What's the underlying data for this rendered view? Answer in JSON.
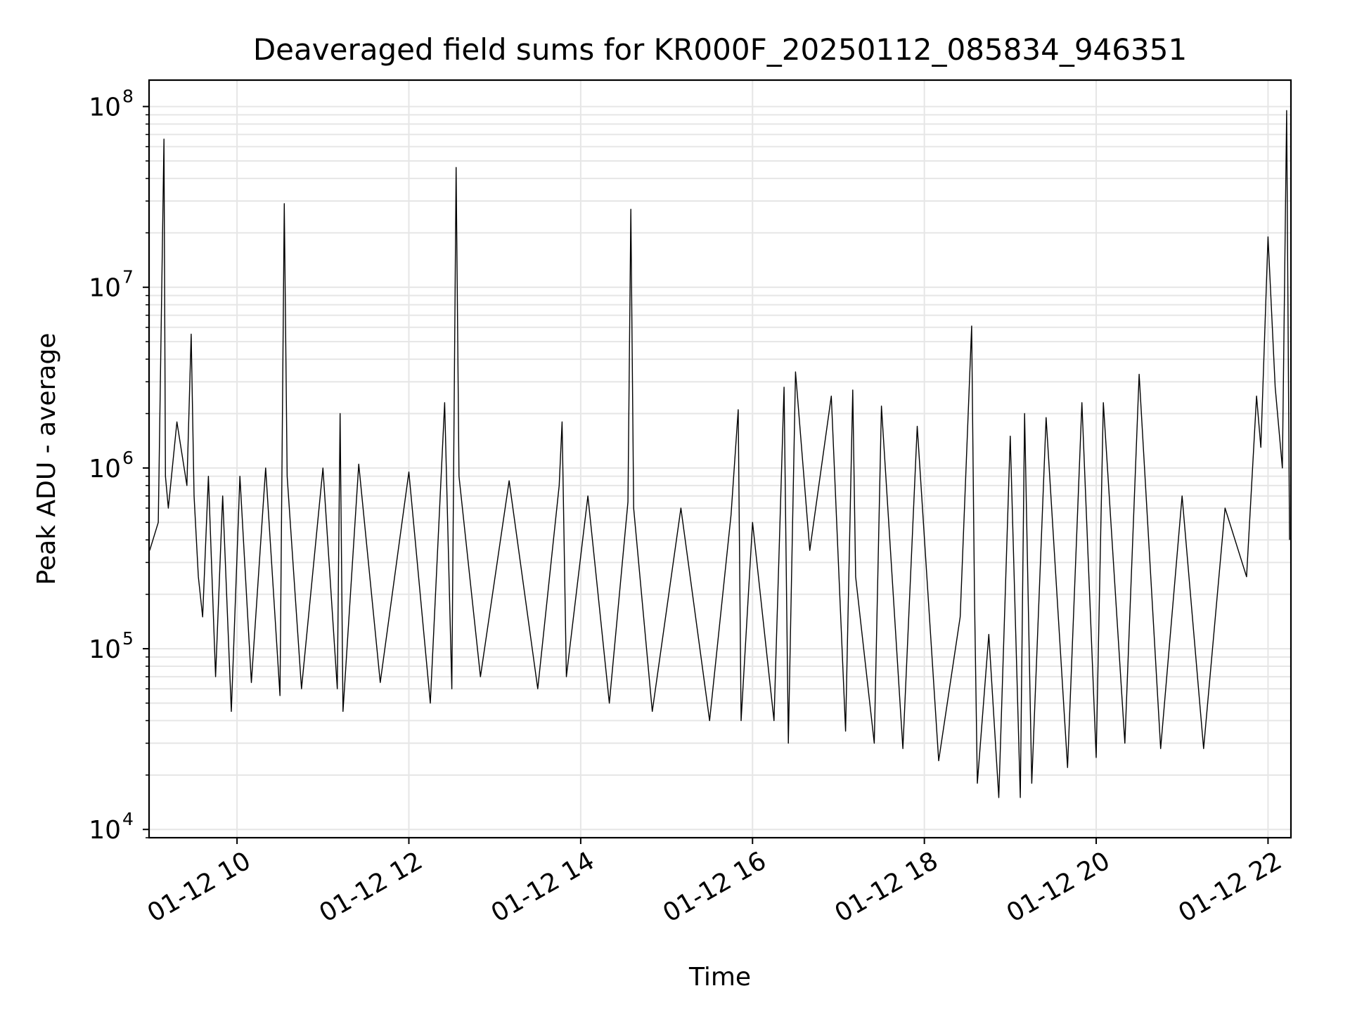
{
  "chart_data": {
    "type": "line",
    "title": "Deaveraged field sums for KR000F_20250112_085834_946351",
    "xlabel": "Time",
    "ylabel": "Peak ADU - average",
    "x_scale": "time",
    "y_scale": "log",
    "xlim": [
      "2025-01-12T08:58:34",
      "2025-01-12T22:16:00"
    ],
    "ylim": [
      9000,
      140000000
    ],
    "grid": true,
    "line_color": "#000000",
    "grid_color": "#e6e6e6",
    "x_ticks": [
      {
        "value": "2025-01-12T10:00",
        "label": "01-12 10"
      },
      {
        "value": "2025-01-12T12:00",
        "label": "01-12 12"
      },
      {
        "value": "2025-01-12T14:00",
        "label": "01-12 14"
      },
      {
        "value": "2025-01-12T16:00",
        "label": "01-12 16"
      },
      {
        "value": "2025-01-12T18:00",
        "label": "01-12 18"
      },
      {
        "value": "2025-01-12T20:00",
        "label": "01-12 20"
      },
      {
        "value": "2025-01-12T22:00",
        "label": "01-12 22"
      }
    ],
    "y_ticks": [
      {
        "value": 10000,
        "base": "10",
        "exp": "4"
      },
      {
        "value": 100000,
        "base": "10",
        "exp": "5"
      },
      {
        "value": 1000000,
        "base": "10",
        "exp": "6"
      },
      {
        "value": 10000000,
        "base": "10",
        "exp": "7"
      },
      {
        "value": 100000000,
        "base": "10",
        "exp": "8"
      }
    ],
    "series": [
      {
        "x": [
          "2025-01-12T08:59",
          "2025-01-12T09:05",
          "2025-01-12T09:09",
          "2025-01-12T09:10",
          "2025-01-12T09:12",
          "2025-01-12T09:18",
          "2025-01-12T09:25",
          "2025-01-12T09:28",
          "2025-01-12T09:30",
          "2025-01-12T09:33",
          "2025-01-12T09:36",
          "2025-01-12T09:40",
          "2025-01-12T09:45",
          "2025-01-12T09:50",
          "2025-01-12T09:56",
          "2025-01-12T10:02",
          "2025-01-12T10:10",
          "2025-01-12T10:20",
          "2025-01-12T10:30",
          "2025-01-12T10:33",
          "2025-01-12T10:35",
          "2025-01-12T10:45",
          "2025-01-12T11:00",
          "2025-01-12T11:10",
          "2025-01-12T11:12",
          "2025-01-12T11:14",
          "2025-01-12T11:25",
          "2025-01-12T11:40",
          "2025-01-12T12:00",
          "2025-01-12T12:15",
          "2025-01-12T12:25",
          "2025-01-12T12:30",
          "2025-01-12T12:33",
          "2025-01-12T12:35",
          "2025-01-12T12:50",
          "2025-01-12T13:10",
          "2025-01-12T13:30",
          "2025-01-12T13:45",
          "2025-01-12T13:47",
          "2025-01-12T13:50",
          "2025-01-12T14:05",
          "2025-01-12T14:20",
          "2025-01-12T14:33",
          "2025-01-12T14:35",
          "2025-01-12T14:37",
          "2025-01-12T14:50",
          "2025-01-12T15:10",
          "2025-01-12T15:30",
          "2025-01-12T15:45",
          "2025-01-12T15:50",
          "2025-01-12T15:52",
          "2025-01-12T16:00",
          "2025-01-12T16:15",
          "2025-01-12T16:22",
          "2025-01-12T16:25",
          "2025-01-12T16:30",
          "2025-01-12T16:40",
          "2025-01-12T16:55",
          "2025-01-12T17:05",
          "2025-01-12T17:10",
          "2025-01-12T17:12",
          "2025-01-12T17:25",
          "2025-01-12T17:30",
          "2025-01-12T17:45",
          "2025-01-12T17:55",
          "2025-01-12T18:10",
          "2025-01-12T18:25",
          "2025-01-12T18:33",
          "2025-01-12T18:35",
          "2025-01-12T18:37",
          "2025-01-12T18:45",
          "2025-01-12T18:52",
          "2025-01-12T19:00",
          "2025-01-12T19:07",
          "2025-01-12T19:10",
          "2025-01-12T19:15",
          "2025-01-12T19:25",
          "2025-01-12T19:40",
          "2025-01-12T19:50",
          "2025-01-12T20:00",
          "2025-01-12T20:05",
          "2025-01-12T20:20",
          "2025-01-12T20:30",
          "2025-01-12T20:45",
          "2025-01-12T21:00",
          "2025-01-12T21:15",
          "2025-01-12T21:30",
          "2025-01-12T21:45",
          "2025-01-12T21:52",
          "2025-01-12T21:55",
          "2025-01-12T22:00",
          "2025-01-12T22:05",
          "2025-01-12T22:10",
          "2025-01-12T22:13",
          "2025-01-12T22:15"
        ],
        "y": [
          350000,
          500000,
          66000000,
          900000,
          600000,
          1800000,
          800000,
          5500000,
          700000,
          250000,
          150000,
          900000,
          70000,
          700000,
          45000,
          900000,
          65000,
          1000000,
          55000,
          29000000,
          900000,
          60000,
          1000000,
          60000,
          2000000,
          45000,
          1050000,
          65000,
          950000,
          50000,
          2300000,
          60000,
          46000000,
          900000,
          70000,
          850000,
          60000,
          800000,
          1800000,
          70000,
          700000,
          50000,
          650000,
          27000000,
          600000,
          45000,
          600000,
          40000,
          550000,
          2100000,
          40000,
          500000,
          40000,
          2800000,
          30000,
          3400000,
          350000,
          2500000,
          35000,
          2700000,
          250000,
          30000,
          2200000,
          28000,
          1700000,
          24000,
          150000,
          6100000,
          200000,
          18000,
          120000,
          15000,
          1500000,
          15000,
          2000000,
          18000,
          1900000,
          22000,
          2300000,
          25000,
          2300000,
          30000,
          3300000,
          28000,
          700000,
          28000,
          600000,
          250000,
          2500000,
          1300000,
          19000000,
          2800000,
          1000000,
          95000000,
          400000
        ]
      }
    ]
  }
}
